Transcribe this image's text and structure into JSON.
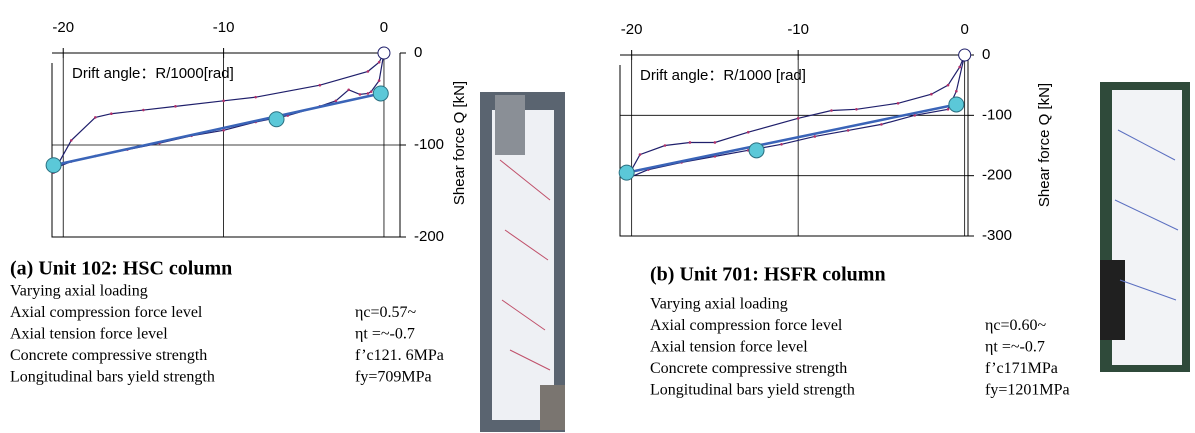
{
  "chart_data": [
    {
      "type": "line",
      "xlabel": "Drift angle：R/1000[rad]",
      "ylabel": "Shear force Q [kN]",
      "xlim": [
        -20.7,
        1
      ],
      "ylim": [
        -200,
        0
      ],
      "xticks": [
        -20,
        -10,
        0
      ],
      "yticks": [
        0,
        -100,
        -200
      ],
      "grid": true,
      "series": [
        {
          "style": "line",
          "color": "#1f1f6b",
          "x": [
            0,
            -0.3,
            -0.8,
            -1,
            -1.5,
            -2.2,
            -3,
            -4,
            -6,
            -8,
            -10,
            -12,
            -14,
            -16,
            -18,
            -19.5,
            -20.5,
            -20.6,
            -20.3,
            -19.5,
            -18,
            -17,
            -15,
            -13,
            -10,
            -8,
            -4,
            -1,
            -0.3,
            0
          ],
          "values": [
            0,
            -30,
            -42,
            -44,
            -45,
            -40,
            -52,
            -58,
            -68,
            -75,
            -84,
            -90,
            -98,
            -105,
            -112,
            -118,
            -125,
            -130,
            -120,
            -95,
            -70,
            -66,
            -62,
            -58,
            -52,
            -48,
            -35,
            -20,
            -10,
            0
          ]
        },
        {
          "style": "fit",
          "color": "#3a64b8",
          "x": [
            -20.6,
            -0.2
          ],
          "values": [
            -122,
            -44
          ]
        },
        {
          "style": "points",
          "color": "#5bc8d8",
          "x": [
            -20.6,
            -6.7,
            -0.2
          ],
          "values": [
            -122,
            -72,
            -44
          ]
        },
        {
          "style": "hollow",
          "color": "#ffffff",
          "x": [
            0
          ],
          "values": [
            0
          ]
        }
      ],
      "title": "(a)   Unit 102: HSC column",
      "subtitle": "Varying axial loading",
      "rows": [
        [
          "Axial compression force level",
          "ηc=0.57~"
        ],
        [
          "Axial tension force level",
          "ηt =~-0.7"
        ],
        [
          "Concrete compressive strength",
          "f’c121. 6MPa"
        ],
        [
          "Longitudinal bars yield strength",
          "fy=709MPa"
        ]
      ]
    },
    {
      "type": "line",
      "xlabel": "Drift angle：R/1000   [rad]",
      "ylabel": "Shear force Q [kN]",
      "xlim": [
        -20.7,
        0.2
      ],
      "ylim": [
        -300,
        0
      ],
      "xticks": [
        -20,
        -10,
        0
      ],
      "yticks": [
        0,
        -100,
        -200,
        -300
      ],
      "grid": true,
      "series": [
        {
          "style": "line",
          "color": "#1f1f6b",
          "x": [
            0,
            -0.5,
            -1,
            -3,
            -5,
            -7,
            -9,
            -11,
            -13,
            -15,
            -17,
            -19,
            -20.3,
            -20.2,
            -19.5,
            -18,
            -16.5,
            -15,
            -13,
            -10,
            -8,
            -6.5,
            -4,
            -2,
            -1,
            -0.3,
            0
          ],
          "values": [
            0,
            -60,
            -90,
            -100,
            -115,
            -125,
            -135,
            -148,
            -158,
            -168,
            -178,
            -190,
            -205,
            -200,
            -165,
            -150,
            -145,
            -145,
            -128,
            -105,
            -92,
            -90,
            -80,
            -65,
            -50,
            -20,
            0
          ]
        },
        {
          "style": "fit",
          "color": "#3a64b8",
          "x": [
            -20.3,
            -0.5
          ],
          "values": [
            -195,
            -82
          ]
        },
        {
          "style": "points",
          "color": "#5bc8d8",
          "x": [
            -20.3,
            -12.5,
            -0.5
          ],
          "values": [
            -195,
            -158,
            -82
          ]
        },
        {
          "style": "hollow",
          "color": "#ffffff",
          "x": [
            0
          ],
          "values": [
            0
          ]
        }
      ],
      "title": "(b)   Unit 701: HSFR column",
      "subtitle": "Varying axial loading",
      "rows": [
        [
          "Axial compression force level",
          "ηc=0.60~"
        ],
        [
          "Axial tension force level",
          "ηt =~-0.7"
        ],
        [
          "Concrete compressive strength",
          "f’c171MPa"
        ],
        [
          "Longitudinal bars yield strength",
          "fy=1201MPa"
        ]
      ]
    }
  ]
}
